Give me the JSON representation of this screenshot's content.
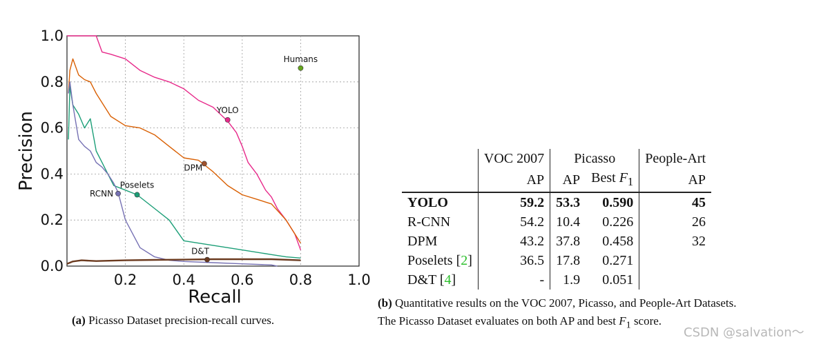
{
  "chart_data": {
    "type": "line",
    "xlabel": "Recall",
    "ylabel": "Precision",
    "xlim": [
      0.0,
      1.0
    ],
    "ylim": [
      0.0,
      1.0
    ],
    "x_ticks": [
      "0.2",
      "0.4",
      "0.6",
      "0.8",
      "1.0"
    ],
    "y_ticks": [
      "0.0",
      "0.2",
      "0.4",
      "0.6",
      "0.8",
      "1.0"
    ],
    "grid": true,
    "series": [
      {
        "name": "YOLO",
        "color": "#e7298a",
        "x": [
          0.0,
          0.005,
          0.01,
          0.05,
          0.1,
          0.12,
          0.15,
          0.2,
          0.25,
          0.3,
          0.35,
          0.4,
          0.45,
          0.5,
          0.55,
          0.58,
          0.6,
          0.62,
          0.65,
          0.68,
          0.7,
          0.72,
          0.75,
          0.78,
          0.8
        ],
        "y": [
          1.0,
          1.0,
          1.0,
          1.0,
          1.0,
          0.93,
          0.92,
          0.9,
          0.85,
          0.82,
          0.8,
          0.77,
          0.72,
          0.69,
          0.63,
          0.58,
          0.52,
          0.45,
          0.4,
          0.33,
          0.3,
          0.25,
          0.2,
          0.14,
          0.07
        ]
      },
      {
        "name": "DPM",
        "color": "#d95f02",
        "x": [
          0.005,
          0.01,
          0.02,
          0.04,
          0.06,
          0.08,
          0.1,
          0.15,
          0.2,
          0.25,
          0.3,
          0.35,
          0.4,
          0.45,
          0.47,
          0.5,
          0.55,
          0.6,
          0.65,
          0.7,
          0.75,
          0.8
        ],
        "y": [
          0.75,
          0.85,
          0.9,
          0.83,
          0.81,
          0.8,
          0.75,
          0.65,
          0.61,
          0.6,
          0.57,
          0.52,
          0.47,
          0.46,
          0.44,
          0.41,
          0.35,
          0.31,
          0.29,
          0.27,
          0.2,
          0.1
        ]
      },
      {
        "name": "Poselets",
        "color": "#1b9e77",
        "x": [
          0.005,
          0.01,
          0.02,
          0.04,
          0.06,
          0.08,
          0.1,
          0.12,
          0.14,
          0.16,
          0.2,
          0.24,
          0.3,
          0.35,
          0.4,
          0.5,
          0.6,
          0.7,
          0.75,
          0.8
        ],
        "y": [
          0.55,
          0.78,
          0.7,
          0.66,
          0.6,
          0.64,
          0.5,
          0.45,
          0.4,
          0.35,
          0.33,
          0.31,
          0.25,
          0.2,
          0.11,
          0.09,
          0.07,
          0.05,
          0.04,
          0.035
        ]
      },
      {
        "name": "RCNN",
        "color": "#7570b3",
        "x": [
          0.005,
          0.01,
          0.02,
          0.04,
          0.06,
          0.08,
          0.1,
          0.12,
          0.14,
          0.16,
          0.175,
          0.2,
          0.25,
          0.3,
          0.35,
          0.4,
          0.5,
          0.6,
          0.7,
          0.72
        ],
        "y": [
          0.75,
          0.8,
          0.7,
          0.55,
          0.52,
          0.5,
          0.45,
          0.43,
          0.4,
          0.36,
          0.32,
          0.2,
          0.08,
          0.04,
          0.025,
          0.02,
          0.015,
          0.01,
          0.005,
          0.0
        ]
      },
      {
        "name": "D&T",
        "color": "#6b3a1f",
        "x": [
          0.0,
          0.02,
          0.05,
          0.1,
          0.2,
          0.3,
          0.4,
          0.5,
          0.6,
          0.7,
          0.8
        ],
        "y": [
          0.01,
          0.02,
          0.025,
          0.022,
          0.025,
          0.027,
          0.028,
          0.03,
          0.03,
          0.03,
          0.025
        ]
      }
    ],
    "markers": [
      {
        "label": "Humans",
        "x": 0.8,
        "y": 0.86,
        "color": "#66a61e",
        "anchor": "right"
      },
      {
        "label": "YOLO",
        "x": 0.55,
        "y": 0.635,
        "color": "#e7298a",
        "anchor": "up"
      },
      {
        "label": "DPM",
        "x": 0.47,
        "y": 0.445,
        "color": "#a0522d",
        "anchor": "left-down"
      },
      {
        "label": "Poselets",
        "x": 0.24,
        "y": 0.31,
        "color": "#1b9e77",
        "anchor": "up"
      },
      {
        "label": "RCNN",
        "x": 0.175,
        "y": 0.315,
        "color": "#7570b3",
        "anchor": "left"
      },
      {
        "label": "D&T",
        "x": 0.48,
        "y": 0.028,
        "color": "#6b3a1f",
        "anchor": "left-up"
      }
    ]
  },
  "caption_a": {
    "tag": "(a)",
    "text": "Picasso Dataset precision-recall curves."
  },
  "caption_b": {
    "tag": "(b)",
    "line1": "Quantitative results on the VOC 2007, Picasso, and People-Art Datasets.",
    "line2_prefix": "The Picasso Dataset evaluates on both AP and best",
    "line2_var": "F",
    "line2_sub": "1",
    "line2_suffix": "score."
  },
  "table": {
    "group_headers": [
      "VOC 2007",
      "Picasso",
      "People-Art"
    ],
    "sub_headers": {
      "voc": "AP",
      "picasso_ap": "AP",
      "picasso_f1_prefix": "Best",
      "picasso_f1_var": "F",
      "picasso_f1_sub": "1",
      "people": "AP"
    },
    "rows": [
      {
        "method": "YOLO",
        "cite": "",
        "voc": "59.2",
        "p_ap": "53.3",
        "p_f1": "0.590",
        "people": "45",
        "bold": true
      },
      {
        "method": "R-CNN",
        "cite": "",
        "voc": "54.2",
        "p_ap": "10.4",
        "p_f1": "0.226",
        "people": "26"
      },
      {
        "method": "DPM",
        "cite": "",
        "voc": "43.2",
        "p_ap": "37.8",
        "p_f1": "0.458",
        "people": "32"
      },
      {
        "method": "Poselets",
        "cite": "2",
        "voc": "36.5",
        "p_ap": "17.8",
        "p_f1": "0.271",
        "people": ""
      },
      {
        "method": "D&T",
        "cite": "4",
        "voc": "-",
        "p_ap": "1.9",
        "p_f1": "0.051",
        "people": ""
      }
    ]
  },
  "watermark": "CSDN @salvation～"
}
